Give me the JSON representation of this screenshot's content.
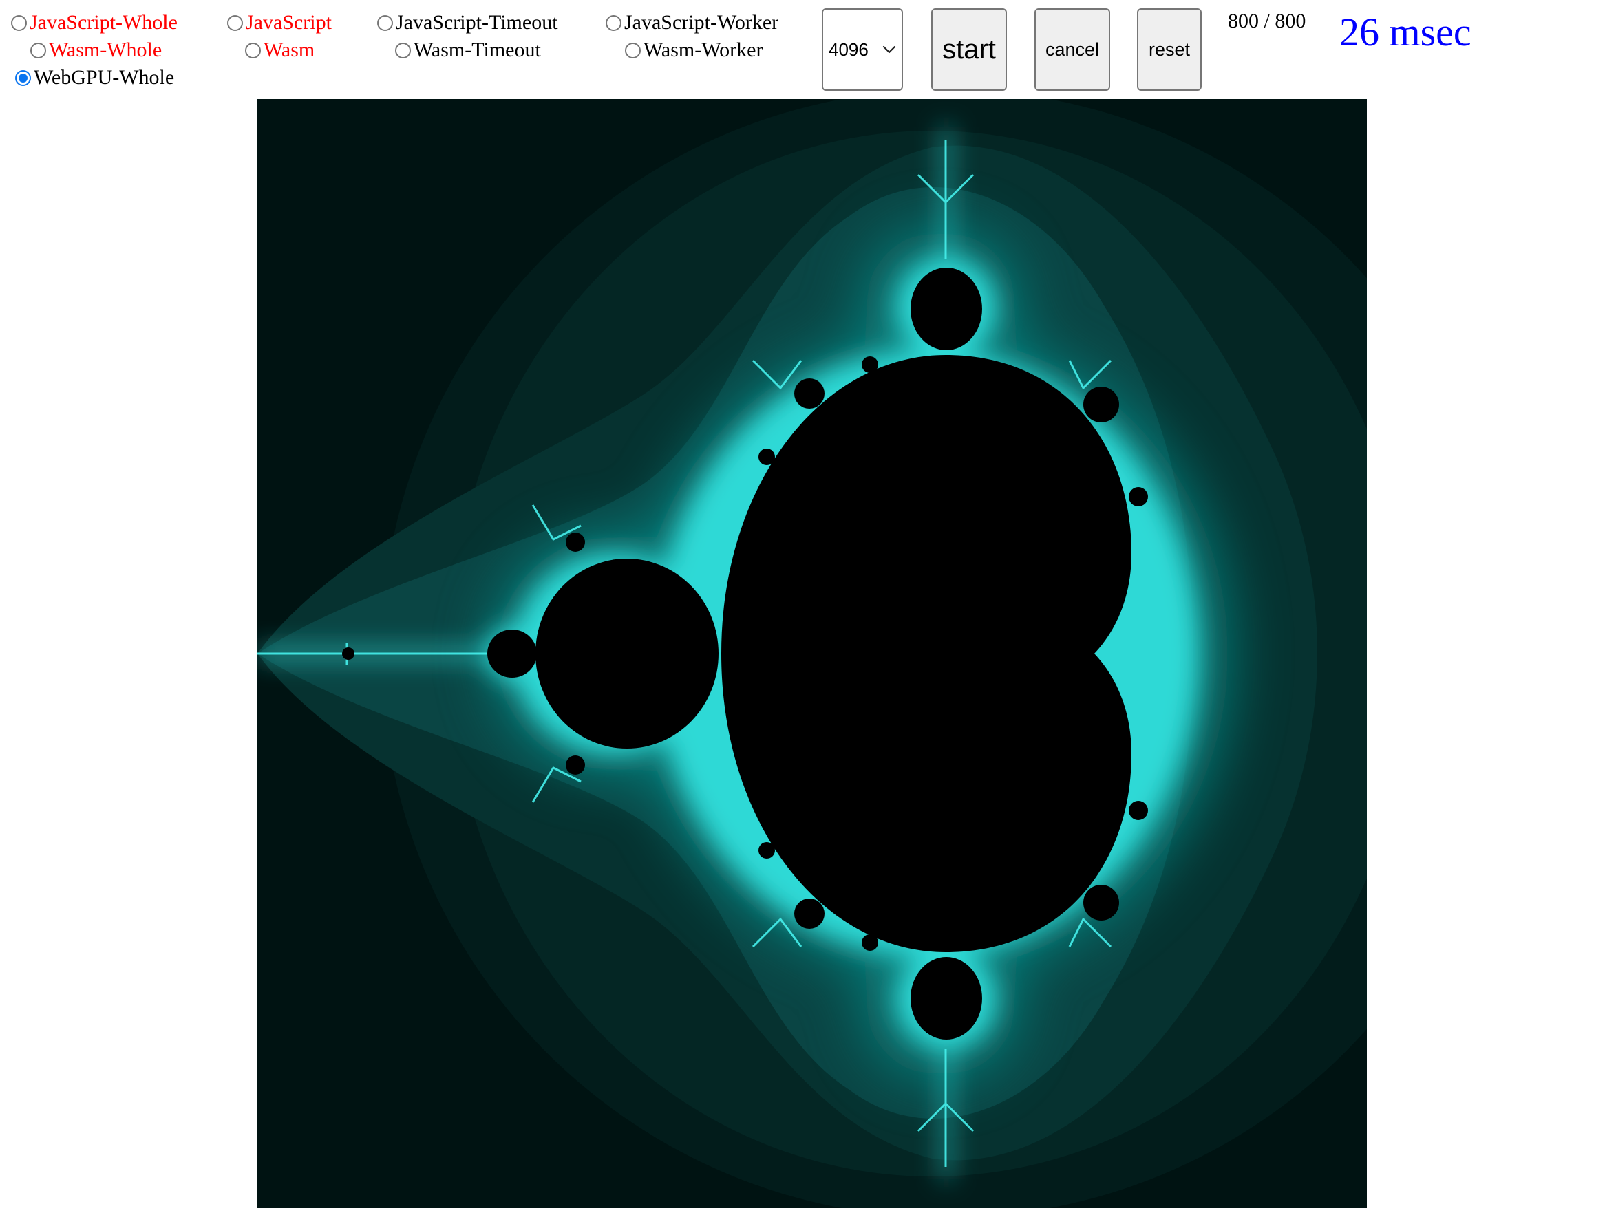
{
  "modes": [
    {
      "label": "JavaScript-Whole",
      "checked": false,
      "color": "#ff0000"
    },
    {
      "label": "JavaScript",
      "checked": false,
      "color": "#ff0000"
    },
    {
      "label": "JavaScript-Timeout",
      "checked": false,
      "color": "#000000"
    },
    {
      "label": "JavaScript-Worker",
      "checked": false,
      "color": "#000000"
    },
    {
      "label": "Wasm-Whole",
      "checked": false,
      "color": "#ff0000"
    },
    {
      "label": "Wasm",
      "checked": false,
      "color": "#ff0000"
    },
    {
      "label": "Wasm-Timeout",
      "checked": false,
      "color": "#000000"
    },
    {
      "label": "Wasm-Worker",
      "checked": false,
      "color": "#000000"
    },
    {
      "label": "WebGPU-Whole",
      "checked": true,
      "color": "#000000"
    }
  ],
  "controls": {
    "iterations_value": "4096",
    "start_label": "start",
    "cancel_label": "cancel",
    "reset_label": "reset"
  },
  "status": {
    "progress": "800 / 800",
    "elapsed": "26 msec"
  },
  "canvas": {
    "palette": {
      "background": "#001312",
      "set": "#000000",
      "edge": "#34e3e0",
      "glow": "#0d7f7d"
    }
  }
}
